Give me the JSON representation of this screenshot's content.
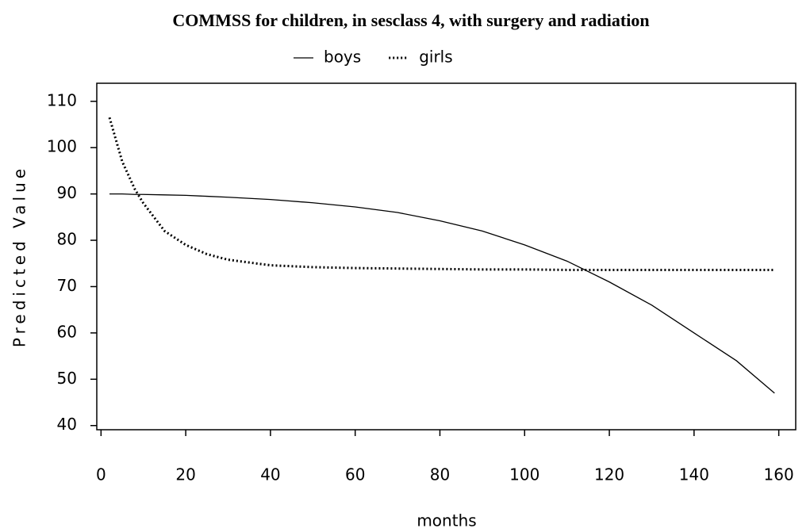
{
  "chart_data": {
    "type": "line",
    "title": "COMMSS for children, in sesclass 4, with surgery and radiation",
    "x_label": "months",
    "y_label": "Predicted Value",
    "x": [
      2,
      5,
      8,
      10,
      15,
      20,
      25,
      30,
      40,
      50,
      60,
      70,
      80,
      90,
      100,
      110,
      120,
      130,
      140,
      150,
      159
    ],
    "series": [
      {
        "name": "boys",
        "color": "#000000",
        "style": "solid",
        "values": [
          90,
          90,
          89.9,
          89.9,
          89.8,
          89.7,
          89.5,
          89.3,
          88.8,
          88.1,
          87.2,
          86,
          84.2,
          82,
          79,
          75.5,
          71,
          66,
          60,
          54,
          47
        ]
      },
      {
        "name": "girls",
        "color": "#000000",
        "style": "dotted",
        "values": [
          106.5,
          97,
          91,
          88,
          82,
          79,
          77,
          75.8,
          74.6,
          74.2,
          74,
          73.9,
          73.8,
          73.7,
          73.7,
          73.6,
          73.6,
          73.6,
          73.6,
          73.6,
          73.6
        ]
      }
    ],
    "xlim": [
      -1,
      164
    ],
    "xticks": [
      0,
      20,
      40,
      60,
      80,
      100,
      120,
      140,
      160
    ],
    "ylim": [
      39.1,
      113.9
    ],
    "yticks": [
      40,
      50,
      60,
      70,
      80,
      90,
      100,
      110
    ],
    "grid": false
  }
}
